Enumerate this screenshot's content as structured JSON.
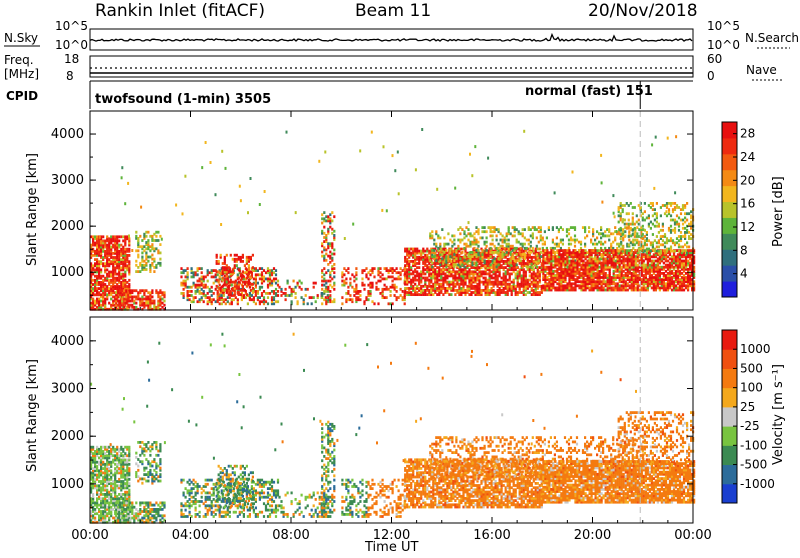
{
  "header": {
    "station": "Rankin Inlet (fitACF)",
    "beam": "Beam 11",
    "date": "20/Nov/2018"
  },
  "side_labels": {
    "nsky": "N.Sky",
    "freq_line1": "Freq.",
    "freq_line2": "[MHz]",
    "cpid": "CPID",
    "nsearch": "N.Search",
    "nave": "Nave",
    "nsky_top_tick": "10^5",
    "nsky_bottom_tick": "10^0",
    "nsearch_top_tick": "10^5",
    "nsearch_bottom_tick": "10^0",
    "freq_top_tick": "18",
    "freq_bottom_tick": "8",
    "nave_top_tick": "60",
    "nave_bottom_tick": "0"
  },
  "cpid": {
    "mode1": "twofsound (1-min) 3505",
    "mode2": "normal (fast) 151",
    "mode_change_hour": 21.9
  },
  "chart_data": [
    {
      "type": "heatmap",
      "title": "",
      "panel": "power",
      "ylabel": "Slant Range [km]",
      "xlabel": "",
      "xlim": [
        0,
        24
      ],
      "ylim": [
        180,
        4500
      ],
      "yticks": [
        "1000",
        "2000",
        "3000",
        "4000"
      ],
      "xticks": [
        "00:00",
        "04:00",
        "08:00",
        "12:00",
        "16:00",
        "20:00",
        "00:00"
      ],
      "colorbar": {
        "label": "Power [dB]",
        "ticks": [
          "4",
          "8",
          "12",
          "16",
          "20",
          "24",
          "28"
        ],
        "range": [
          0,
          30
        ],
        "colors": [
          "#1f1fdd",
          "#2a4fa8",
          "#2f6f7d",
          "#3f8a5a",
          "#5eb43a",
          "#b8c32a",
          "#f2b61e",
          "#f48a14",
          "#f35a10",
          "#ee2a10",
          "#e80f0f"
        ]
      }
    },
    {
      "type": "heatmap",
      "title": "",
      "panel": "velocity",
      "ylabel": "Slant Range [km]",
      "xlabel": "Time UT",
      "xlim": [
        0,
        24
      ],
      "ylim": [
        180,
        4500
      ],
      "yticks": [
        "1000",
        "2000",
        "3000",
        "4000"
      ],
      "xticks": [
        "00:00",
        "04:00",
        "08:00",
        "12:00",
        "16:00",
        "20:00",
        "00:00"
      ],
      "colorbar": {
        "label": "Velocity [m s⁻¹]",
        "ticks": [
          "1000",
          "500",
          "100",
          "25",
          "-25",
          "-100",
          "-500",
          "-1000"
        ],
        "colors": [
          "#1a3fd0",
          "#2c6c9a",
          "#3b8a52",
          "#78c440",
          "#c8c8c8",
          "#f4a81c",
          "#f47a10",
          "#f05010",
          "#e81a10"
        ]
      }
    }
  ]
}
